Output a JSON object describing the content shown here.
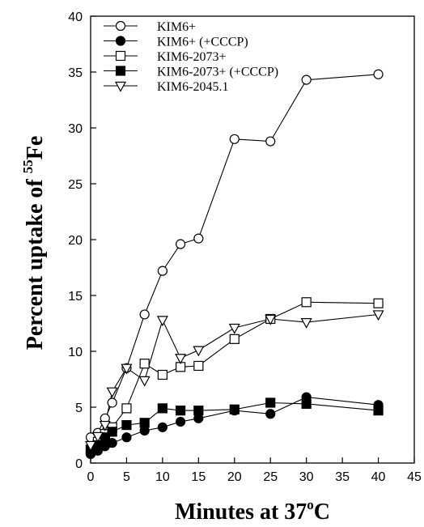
{
  "chart_data": {
    "type": "line",
    "xlabel": "Minutes at 37",
    "xlabel_sup": "o",
    "xlabel_tail": "C",
    "ylabel": "Percent uptake of ",
    "ylabel_sup": "55",
    "ylabel_tail": "Fe",
    "xlim": [
      0,
      45
    ],
    "ylim": [
      0,
      40
    ],
    "x_ticks": [
      0,
      5,
      10,
      15,
      20,
      25,
      30,
      35,
      40,
      45
    ],
    "y_ticks": [
      0,
      5,
      10,
      15,
      20,
      25,
      30,
      35,
      40
    ],
    "grid": false,
    "legend_position": "top-left",
    "series": [
      {
        "name": "KIM6+",
        "marker": "open-circle",
        "points": [
          [
            0,
            2.3
          ],
          [
            1,
            2.7
          ],
          [
            2,
            4.0
          ],
          [
            3,
            5.4
          ],
          [
            5,
            8.5
          ],
          [
            7.5,
            13.3
          ],
          [
            10,
            17.2
          ],
          [
            12.5,
            19.6
          ],
          [
            15,
            20.1
          ],
          [
            20,
            29.0
          ],
          [
            25,
            28.8
          ],
          [
            30,
            34.3
          ],
          [
            40,
            34.8
          ]
        ]
      },
      {
        "name": "KIM6+ (+CCCP)",
        "marker": "filled-circle",
        "points": [
          [
            0,
            0.8
          ],
          [
            1,
            1.1
          ],
          [
            2,
            1.5
          ],
          [
            3,
            1.8
          ],
          [
            5,
            2.3
          ],
          [
            7.5,
            2.9
          ],
          [
            10,
            3.2
          ],
          [
            12.5,
            3.7
          ],
          [
            15,
            4.0
          ],
          [
            20,
            4.7
          ],
          [
            25,
            4.4
          ],
          [
            30,
            5.9
          ],
          [
            40,
            5.2
          ]
        ]
      },
      {
        "name": "KIM6-2073+",
        "marker": "open-square",
        "points": [
          [
            0,
            1.2
          ],
          [
            1,
            1.9
          ],
          [
            2,
            2.6
          ],
          [
            3,
            3.2
          ],
          [
            5,
            4.9
          ],
          [
            7.5,
            8.9
          ],
          [
            10,
            7.9
          ],
          [
            12.5,
            8.6
          ],
          [
            15,
            8.7
          ],
          [
            20,
            11.1
          ],
          [
            25,
            12.9
          ],
          [
            30,
            14.4
          ],
          [
            40,
            14.3
          ]
        ]
      },
      {
        "name": "KIM6-2073+ (+CCCP)",
        "marker": "filled-square",
        "points": [
          [
            0,
            1.2
          ],
          [
            1,
            1.6
          ],
          [
            2,
            2.3
          ],
          [
            3,
            2.8
          ],
          [
            5,
            3.4
          ],
          [
            7.5,
            3.6
          ],
          [
            10,
            4.9
          ],
          [
            12.5,
            4.7
          ],
          [
            15,
            4.7
          ],
          [
            20,
            4.8
          ],
          [
            25,
            5.4
          ],
          [
            30,
            5.3
          ],
          [
            40,
            4.7
          ]
        ]
      },
      {
        "name": "KIM6-2045.1",
        "marker": "open-triangle-down",
        "points": [
          [
            0,
            1.6
          ],
          [
            1,
            2.4
          ],
          [
            2,
            3.4
          ],
          [
            3,
            6.4
          ],
          [
            5,
            8.5
          ],
          [
            7.5,
            7.4
          ],
          [
            10,
            12.8
          ],
          [
            12.5,
            9.4
          ],
          [
            15,
            10.1
          ],
          [
            20,
            12.1
          ],
          [
            25,
            12.9
          ],
          [
            30,
            12.6
          ],
          [
            40,
            13.3
          ]
        ]
      }
    ]
  }
}
